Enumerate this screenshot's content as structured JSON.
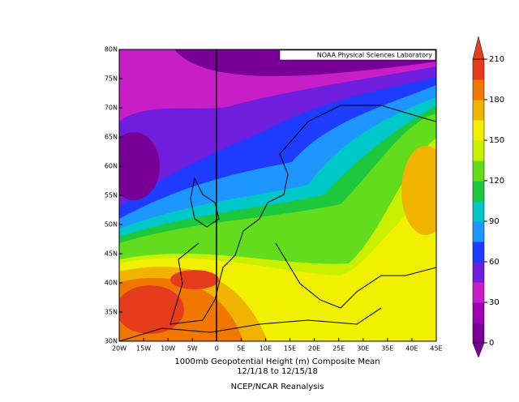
{
  "header": {
    "badge": "NOAA Physical Sciences Laboratory"
  },
  "map": {
    "xlim": [
      -20,
      45
    ],
    "ylim": [
      30,
      80
    ],
    "xticks": [
      {
        "value": -20,
        "label": "20W"
      },
      {
        "value": -15,
        "label": "15W"
      },
      {
        "value": -10,
        "label": "10W"
      },
      {
        "value": -5,
        "label": "5W"
      },
      0,
      {
        "value": 5,
        "label": "5E"
      },
      {
        "value": 10,
        "label": "10E"
      },
      {
        "value": 15,
        "label": "15E"
      },
      {
        "value": 20,
        "label": "20E"
      },
      {
        "value": 25,
        "label": "25E"
      },
      {
        "value": 30,
        "label": "30E"
      },
      {
        "value": 35,
        "label": "35E"
      },
      {
        "value": 40,
        "label": "40E"
      },
      {
        "value": 45,
        "label": "45E"
      }
    ],
    "yticks": [
      {
        "value": 30,
        "label": "30N"
      },
      {
        "value": 35,
        "label": "35N"
      },
      {
        "value": 40,
        "label": "40N"
      },
      {
        "value": 45,
        "label": "45N"
      },
      {
        "value": 50,
        "label": "50N"
      },
      {
        "value": 55,
        "label": "55N"
      },
      {
        "value": 60,
        "label": "60N"
      },
      {
        "value": 65,
        "label": "65N"
      },
      {
        "value": 70,
        "label": "70N"
      },
      {
        "value": 75,
        "label": "75N"
      },
      {
        "value": 80,
        "label": "80N"
      }
    ]
  },
  "colorbar": {
    "lim": [
      0,
      210
    ],
    "ticks": [
      0,
      30,
      60,
      90,
      120,
      150,
      180,
      210
    ],
    "colors": [
      "#780096",
      "#a000b4",
      "#c81ec8",
      "#6e1edc",
      "#1e3cff",
      "#1e96ff",
      "#00c8c8",
      "#1ec83c",
      "#64dc1e",
      "#c8f000",
      "#f0f000",
      "#f0b400",
      "#f07800",
      "#e63c1e"
    ]
  },
  "caption": {
    "line1": "1000mb Geopotential Height (m) Composite Mean",
    "line2": "12/1/18 to 12/15/18",
    "line3": "NCEP/NCAR Reanalysis"
  }
}
